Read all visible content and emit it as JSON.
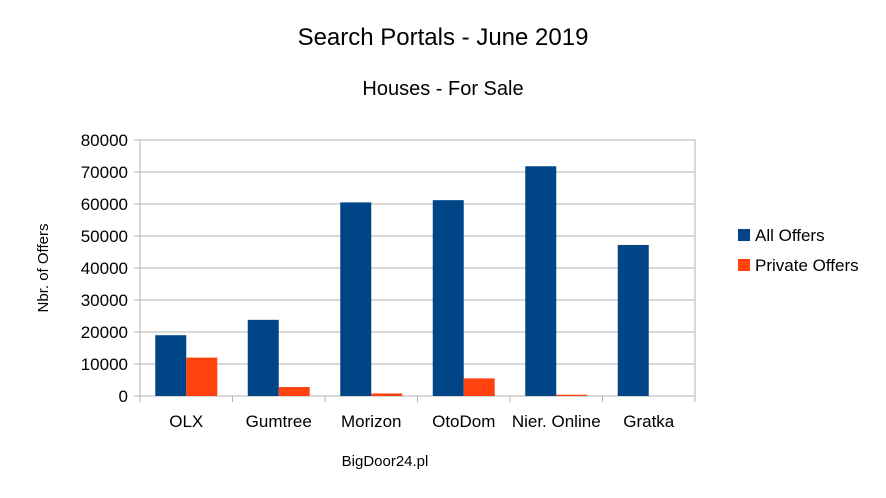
{
  "chart_data": {
    "type": "bar",
    "title": "Search Portals - June 2019",
    "subtitle": "Houses - For Sale",
    "xlabel": "BigDoor24.pl",
    "ylabel": "Nbr. of Offers",
    "categories": [
      "OLX",
      "Gumtree",
      "Morizon",
      "OtoDom",
      "Nier. Online",
      "Gratka"
    ],
    "series": [
      {
        "name": "All Offers",
        "color": "#004586",
        "values": [
          19000,
          23800,
          60500,
          61200,
          71800,
          47200
        ]
      },
      {
        "name": "Private Offers",
        "color": "#ff420e",
        "values": [
          12000,
          2800,
          800,
          5500,
          400,
          0
        ]
      }
    ],
    "ylim": [
      0,
      80000
    ],
    "yticks": [
      0,
      10000,
      20000,
      30000,
      40000,
      50000,
      60000,
      70000,
      80000
    ],
    "grid": true,
    "legend_position": "right"
  }
}
